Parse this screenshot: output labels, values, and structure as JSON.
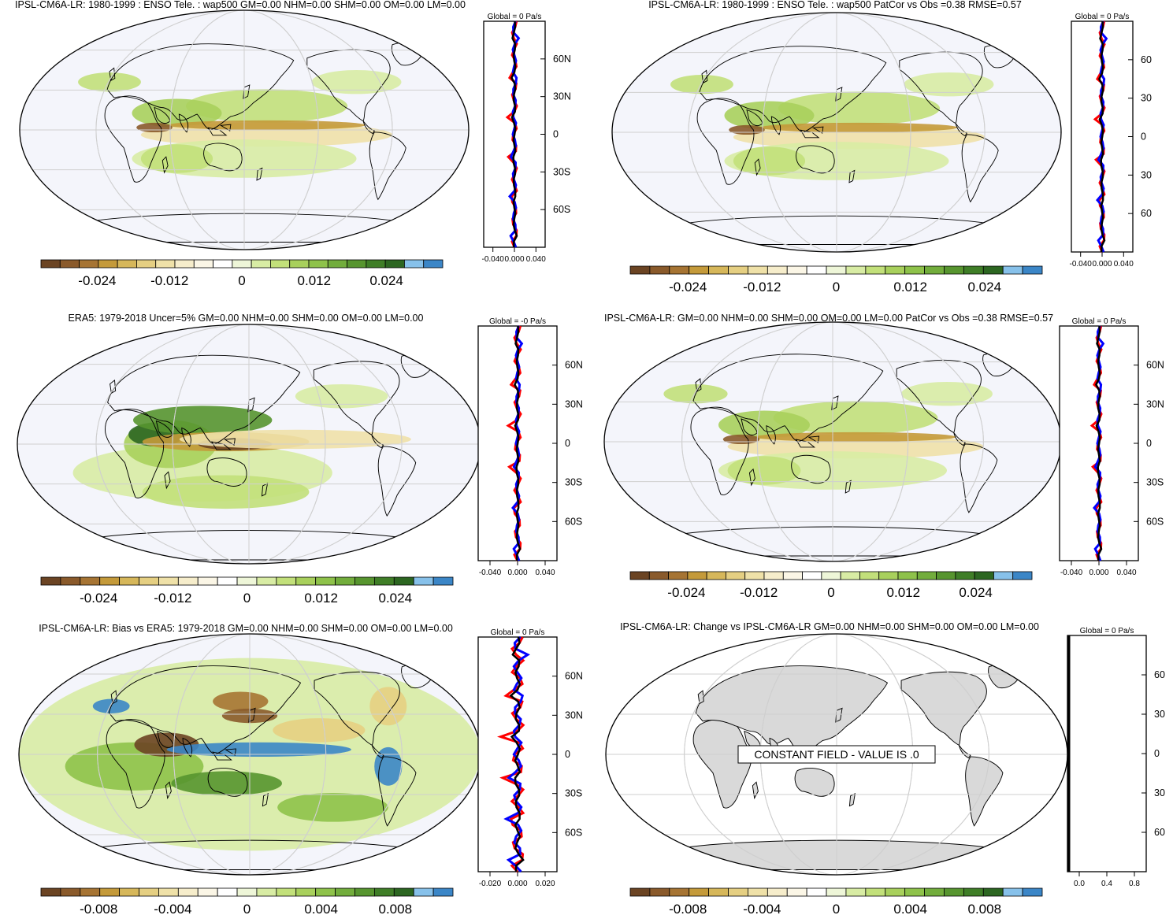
{
  "figure": {
    "variable": "wap500",
    "units": "Pa/s",
    "colors": {
      "ocean_bg": "#f4f5fb",
      "land_fill_constant": "#d9d9d9",
      "obs_line": "#ff0000",
      "model_line": "#0000ff",
      "mean_line": "#000000",
      "grid": "#cfcfcf",
      "colorbar": [
        "#6b4423",
        "#8a5a2b",
        "#a67433",
        "#c49a3a",
        "#d6b75a",
        "#e5cf82",
        "#efe1a8",
        "#f6edcb",
        "#fbf6e6",
        "#ffffff",
        "#eef6d8",
        "#d8eca4",
        "#c2e07a",
        "#a8d05c",
        "#8ec24a",
        "#72ad3c",
        "#57952f",
        "#3f7e27",
        "#2c6621",
        "#87c1ea",
        "#3b86c7"
      ]
    },
    "panels": [
      {
        "id": "model-climatology",
        "title": "IPSL-CM6A-LR: 1980-1999 : ENSO Tele. : wap500 GM=0.00 NHM=0.00 SHM=0.00 OM=0.00 LM=0.00",
        "zonal_title": "Global = 0 Pa/s",
        "lat_labels": [
          "60N",
          "30N",
          "0",
          "30S",
          "60S"
        ],
        "zonal_ticks": [
          "-0.040",
          "0.000",
          "0.040"
        ],
        "colorbar_labels": [
          "-0.024",
          "-0.012",
          "0",
          "0.012",
          "0.024"
        ]
      },
      {
        "id": "model-vs-obs",
        "title": "IPSL-CM6A-LR: 1980-1999 : ENSO Tele. : wap500 PatCor vs Obs =0.38 RMSE=0.57",
        "zonal_title": "Global = 0 Pa/s",
        "lat_labels": [
          "60",
          "30",
          "0",
          "30",
          "60"
        ],
        "zonal_ticks": [
          "-0.040",
          "0.000",
          "0.040"
        ],
        "colorbar_labels": [
          "-0.024",
          "-0.012",
          "0",
          "0.012",
          "0.024"
        ]
      },
      {
        "id": "era5",
        "title": "ERA5: 1979-2018 Uncer=5% GM=0.00 NHM=0.00 SHM=0.00 OM=0.00 LM=0.00",
        "zonal_title": "Global = -0 Pa/s",
        "lat_labels": [
          "60N",
          "30N",
          "0",
          "30S",
          "60S"
        ],
        "zonal_ticks": [
          "-0.040",
          "0.000",
          "0.040"
        ],
        "colorbar_labels": [
          "-0.024",
          "-0.012",
          "0",
          "0.012",
          "0.024"
        ]
      },
      {
        "id": "model-patcor",
        "title": "IPSL-CM6A-LR: GM=0.00 NHM=0.00 SHM=0.00 OM=0.00 LM=0.00 PatCor vs Obs =0.38 RMSE=0.57",
        "zonal_title": "Global = 0 Pa/s",
        "lat_labels": [
          "60N",
          "30N",
          "0",
          "30S",
          "60S"
        ],
        "zonal_ticks": [
          "-0.040",
          "0.000",
          "0.040"
        ],
        "colorbar_labels": [
          "-0.024",
          "-0.012",
          "0",
          "0.012",
          "0.024"
        ]
      },
      {
        "id": "bias-vs-era5",
        "title": "IPSL-CM6A-LR: Bias vs ERA5: 1979-2018 GM=0.00 NHM=0.00 SHM=0.00 OM=0.00 LM=0.00",
        "zonal_title": "Global = 0 Pa/s",
        "lat_labels": [
          "60N",
          "30N",
          "0",
          "30S",
          "60S"
        ],
        "zonal_ticks": [
          "-0.020",
          "0.000",
          "0.020"
        ],
        "colorbar_labels": [
          "-0.008",
          "-0.004",
          "0",
          "0.004",
          "0.008"
        ]
      },
      {
        "id": "change",
        "title": "IPSL-CM6A-LR: Change vs IPSL-CM6A-LR GM=0.00 NHM=0.00 SHM=0.00 OM=0.00 LM=0.00",
        "zonal_title": "Global = 0 Pa/s",
        "lat_labels": [
          "60",
          "30",
          "0",
          "30",
          "60"
        ],
        "zonal_ticks": [
          "0.0",
          "0.4",
          "0.8"
        ],
        "colorbar_labels": [
          "-0.008",
          "-0.004",
          "0",
          "0.004",
          "0.008"
        ],
        "note": "CONSTANT FIELD - VALUE IS .0"
      }
    ]
  }
}
